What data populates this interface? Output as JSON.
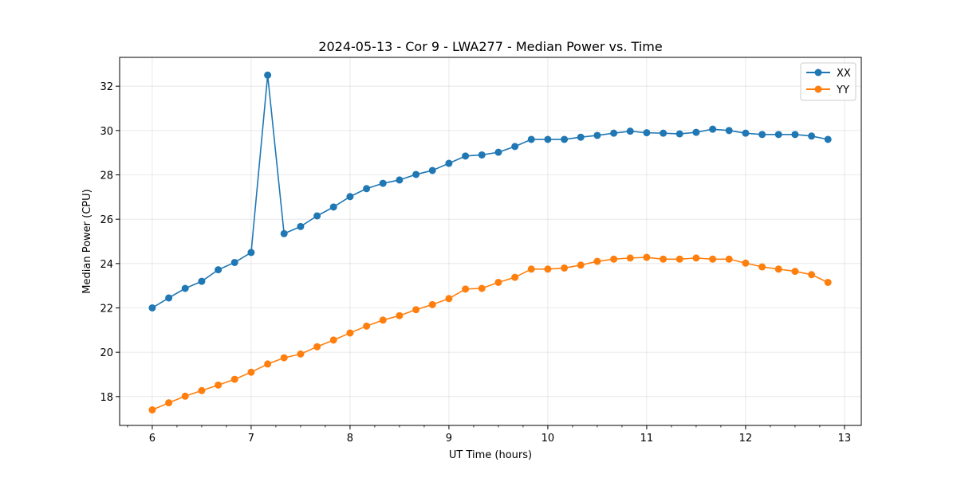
{
  "chart_data": {
    "type": "line",
    "title": "2024-05-13 - Cor 9 - LWA277 - Median Power vs. Time",
    "xlabel": "UT Time (hours)",
    "ylabel": "Median Power (CPU)",
    "xlim": [
      5.67,
      13.17
    ],
    "ylim": [
      16.7,
      33.3
    ],
    "xticks": [
      6,
      7,
      8,
      9,
      10,
      11,
      12,
      13
    ],
    "xtick_labels": [
      "6",
      "7",
      "8",
      "9",
      "10",
      "11",
      "12",
      "13"
    ],
    "yticks": [
      18,
      20,
      22,
      24,
      26,
      28,
      30,
      32
    ],
    "ytick_labels": [
      "18",
      "20",
      "22",
      "24",
      "26",
      "28",
      "30",
      "32"
    ],
    "grid": true,
    "legend_position": "top-right",
    "x": [
      6.0,
      6.167,
      6.333,
      6.5,
      6.667,
      6.833,
      7.0,
      7.167,
      7.333,
      7.5,
      7.667,
      7.833,
      8.0,
      8.167,
      8.333,
      8.5,
      8.667,
      8.833,
      9.0,
      9.167,
      9.333,
      9.5,
      9.667,
      9.833,
      10.0,
      10.167,
      10.333,
      10.5,
      10.667,
      10.833,
      11.0,
      11.167,
      11.333,
      11.5,
      11.667,
      11.833,
      12.0,
      12.167,
      12.333,
      12.5,
      12.667,
      12.833
    ],
    "series": [
      {
        "name": "XX",
        "color": "#1f77b4",
        "values": [
          22.0,
          22.45,
          22.88,
          23.2,
          23.72,
          24.05,
          24.5,
          32.5,
          25.35,
          25.67,
          26.15,
          26.55,
          27.02,
          27.38,
          27.62,
          27.77,
          28.02,
          28.2,
          28.52,
          28.85,
          28.9,
          29.02,
          29.28,
          29.6,
          29.6,
          29.6,
          29.7,
          29.78,
          29.88,
          29.97,
          29.9,
          29.88,
          29.85,
          29.92,
          30.06,
          30.0,
          29.88,
          29.82,
          29.82,
          29.82,
          29.75,
          29.6
        ]
      },
      {
        "name": "YY",
        "color": "#ff7f0e",
        "values": [
          17.4,
          17.72,
          18.02,
          18.27,
          18.52,
          18.78,
          19.1,
          19.47,
          19.75,
          19.92,
          20.25,
          20.55,
          20.87,
          21.18,
          21.45,
          21.65,
          21.92,
          22.15,
          22.42,
          22.85,
          22.88,
          23.15,
          23.38,
          23.75,
          23.75,
          23.8,
          23.93,
          24.1,
          24.2,
          24.25,
          24.28,
          24.2,
          24.2,
          24.25,
          24.2,
          24.2,
          24.02,
          23.85,
          23.75,
          23.65,
          23.5,
          23.15
        ]
      }
    ]
  }
}
